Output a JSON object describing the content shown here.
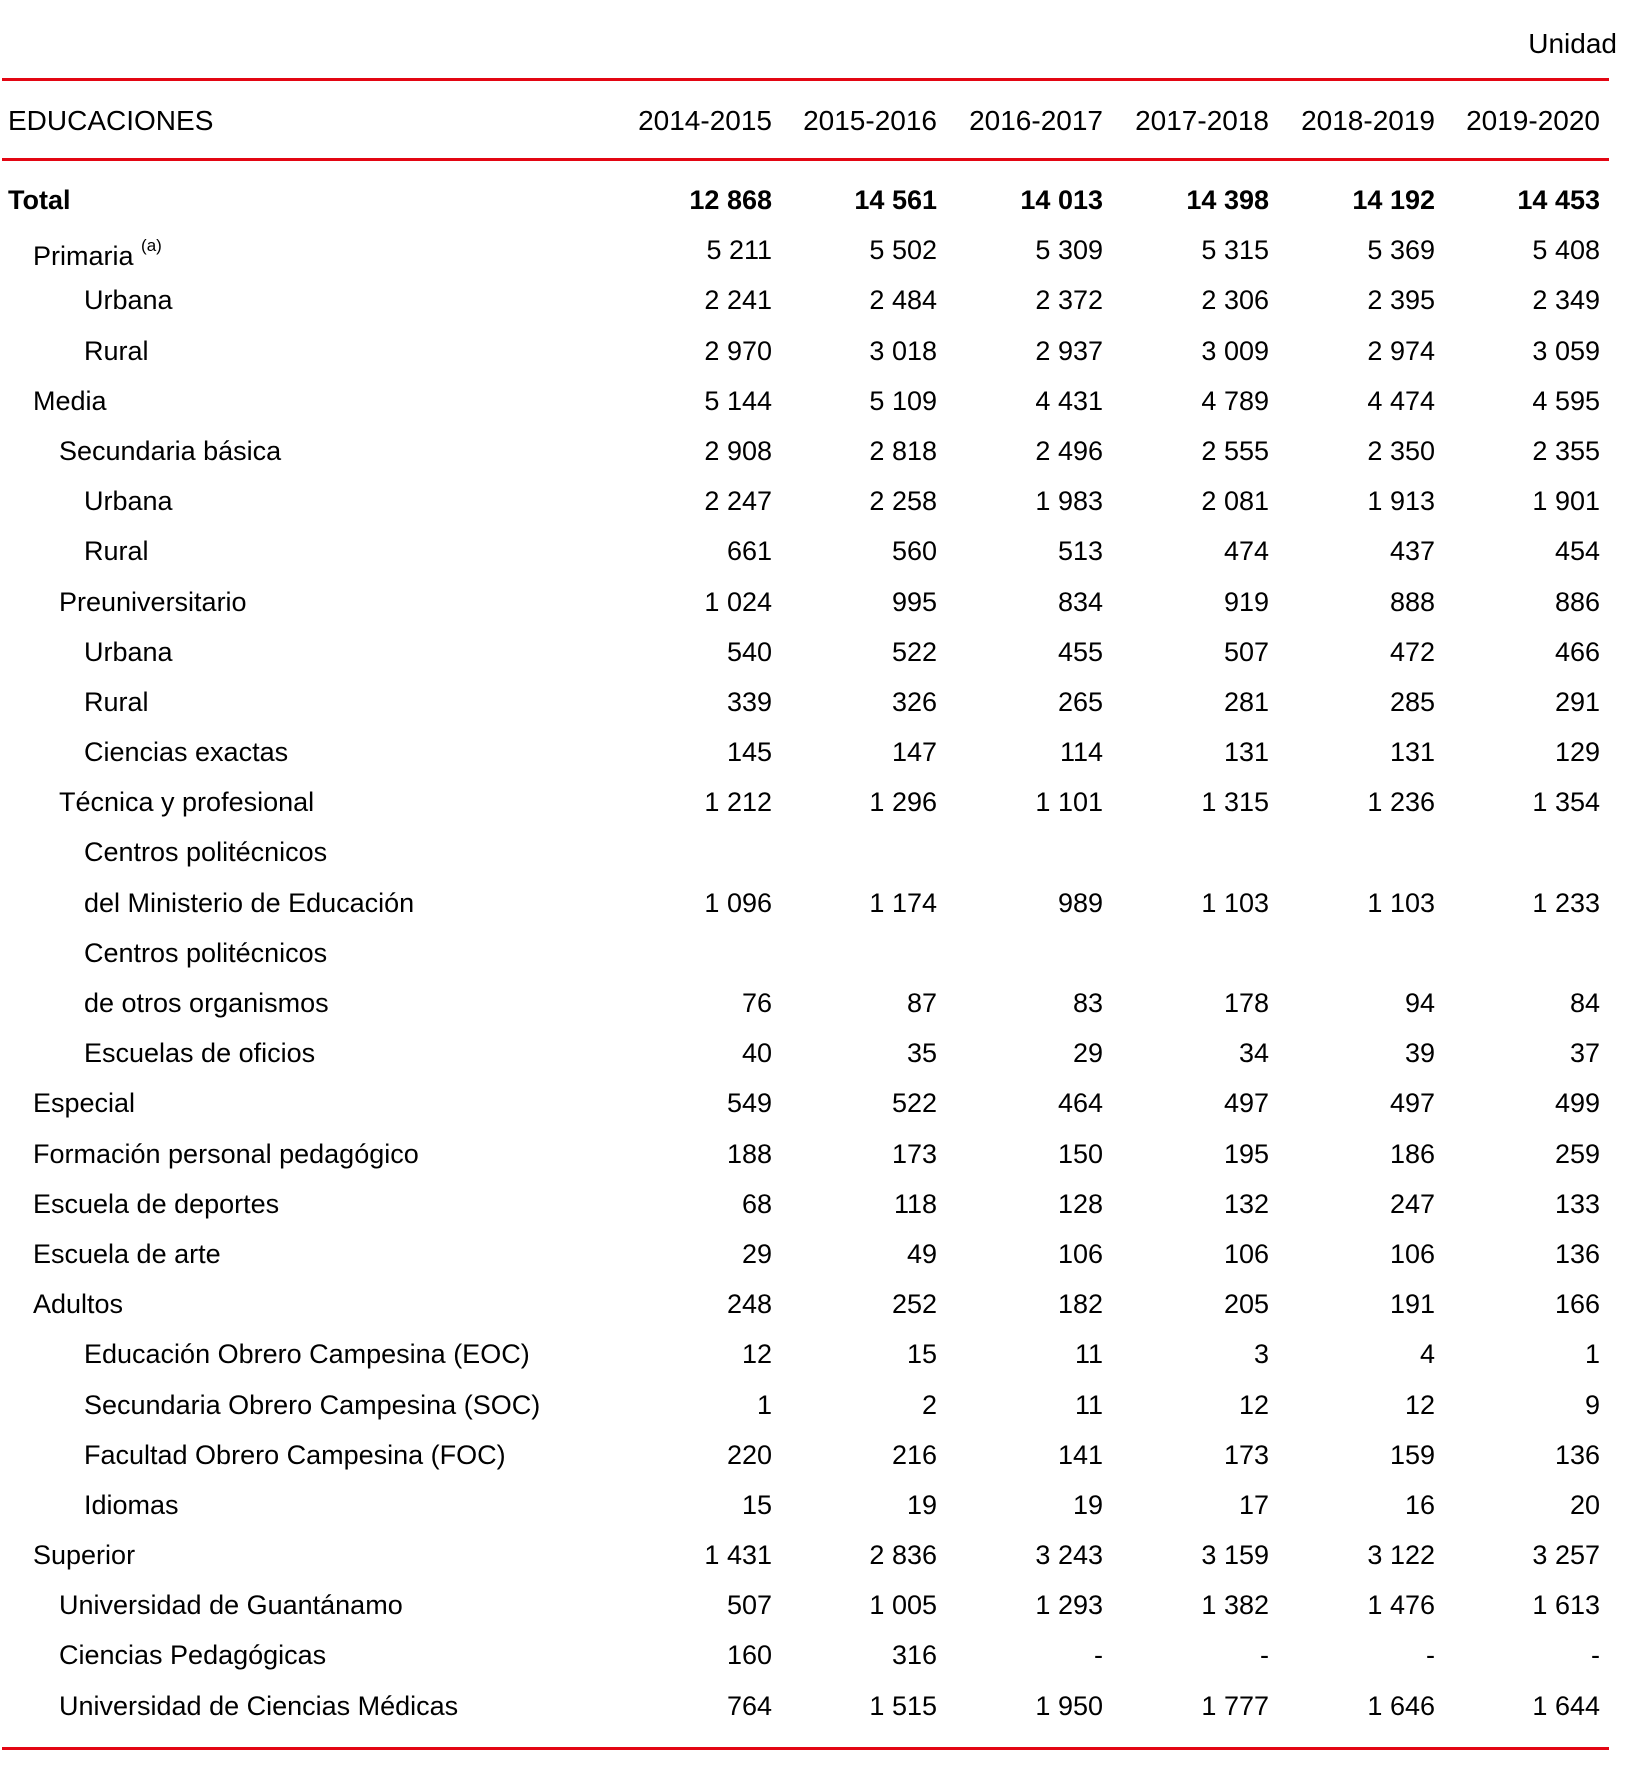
{
  "unit_label": "Unidad",
  "header": {
    "stub": "EDUCACIONES",
    "years": [
      "2014-2015",
      "2015-2016",
      "2016-2017",
      "2017-2018",
      "2018-2019",
      "2019-2020"
    ]
  },
  "rows": [
    {
      "label": "Total",
      "level": 0,
      "bold": true,
      "values": [
        "12 868",
        "14 561",
        "14 013",
        "14 398",
        "14 192",
        "14 453"
      ]
    },
    {
      "label": "Primaria",
      "note": "(a)",
      "level": 1,
      "values": [
        "5 211",
        "5 502",
        "5 309",
        "5 315",
        "5 369",
        "5 408"
      ]
    },
    {
      "label": "Urbana",
      "level": 3,
      "values": [
        "2 241",
        "2 484",
        "2 372",
        "2 306",
        "2 395",
        "2 349"
      ]
    },
    {
      "label": "Rural",
      "level": 3,
      "values": [
        "2 970",
        "3 018",
        "2 937",
        "3 009",
        "2 974",
        "3 059"
      ]
    },
    {
      "label": "Media",
      "level": 1,
      "values": [
        "5 144",
        "5 109",
        "4 431",
        "4 789",
        "4 474",
        "4 595"
      ]
    },
    {
      "label": "Secundaria básica",
      "level": 2,
      "values": [
        "2 908",
        "2 818",
        "2 496",
        "2 555",
        "2 350",
        "2 355"
      ]
    },
    {
      "label": "Urbana",
      "level": 3,
      "values": [
        "2 247",
        "2 258",
        "1 983",
        "2 081",
        "1 913",
        "1 901"
      ]
    },
    {
      "label": "Rural",
      "level": 3,
      "values": [
        "661",
        "560",
        "513",
        "474",
        "437",
        "454"
      ]
    },
    {
      "label": "Preuniversitario",
      "level": 2,
      "values": [
        "1 024",
        "995",
        "834",
        "919",
        "888",
        "886"
      ]
    },
    {
      "label": "Urbana",
      "level": 3,
      "values": [
        "540",
        "522",
        "455",
        "507",
        "472",
        "466"
      ]
    },
    {
      "label": "Rural",
      "level": 3,
      "values": [
        "339",
        "326",
        "265",
        "281",
        "285",
        "291"
      ]
    },
    {
      "label": "Ciencias exactas",
      "level": 3,
      "values": [
        "145",
        "147",
        "114",
        "131",
        "131",
        "129"
      ]
    },
    {
      "label": "Técnica y profesional",
      "level": 2,
      "values": [
        "1 212",
        "1 296",
        "1 101",
        "1 315",
        "1 236",
        "1 354"
      ]
    },
    {
      "label": "Centros politécnicos",
      "level": 3,
      "values": [
        "",
        "",
        "",
        "",
        "",
        ""
      ]
    },
    {
      "label": "del Ministerio de Educación",
      "level": 3,
      "values": [
        "1 096",
        "1 174",
        "989",
        "1 103",
        "1 103",
        "1 233"
      ]
    },
    {
      "label": "Centros politécnicos",
      "level": 3,
      "values": [
        "",
        "",
        "",
        "",
        "",
        ""
      ]
    },
    {
      "label": "de otros organismos",
      "level": 3,
      "values": [
        "76",
        "87",
        "83",
        "178",
        "94",
        "84"
      ]
    },
    {
      "label": "Escuelas de oficios",
      "level": 3,
      "values": [
        "40",
        "35",
        "29",
        "34",
        "39",
        "37"
      ]
    },
    {
      "label": "Especial",
      "level": 1,
      "values": [
        "549",
        "522",
        "464",
        "497",
        "497",
        "499"
      ]
    },
    {
      "label": "Formación personal pedagógico",
      "level": 1,
      "values": [
        "188",
        "173",
        "150",
        "195",
        "186",
        "259"
      ]
    },
    {
      "label": "Escuela de deportes",
      "level": 1,
      "values": [
        "68",
        "118",
        "128",
        "132",
        "247",
        "133"
      ]
    },
    {
      "label": "Escuela de arte",
      "level": 1,
      "values": [
        "29",
        "49",
        "106",
        "106",
        "106",
        "136"
      ]
    },
    {
      "label": "Adultos",
      "level": 1,
      "values": [
        "248",
        "252",
        "182",
        "205",
        "191",
        "166"
      ]
    },
    {
      "label": "Educación Obrero Campesina (EOC)",
      "level": 3,
      "values": [
        "12",
        "15",
        "11",
        "3",
        "4",
        "1"
      ]
    },
    {
      "label": "Secundaria Obrero Campesina (SOC)",
      "level": 3,
      "values": [
        "1",
        "2",
        "11",
        "12",
        "12",
        "9"
      ]
    },
    {
      "label": "Facultad Obrero Campesina (FOC)",
      "level": 3,
      "values": [
        "220",
        "216",
        "141",
        "173",
        "159",
        "136"
      ]
    },
    {
      "label": "Idiomas",
      "level": 3,
      "values": [
        "15",
        "19",
        "19",
        "17",
        "16",
        "20"
      ]
    },
    {
      "label": "Superior",
      "level": 1,
      "values": [
        "1 431",
        "2 836",
        "3 243",
        "3 159",
        "3 122",
        "3 257"
      ]
    },
    {
      "label": "Universidad de Guantánamo",
      "level": 2,
      "values": [
        "507",
        "1 005",
        "1 293",
        "1 382",
        "1 476",
        "1 613"
      ]
    },
    {
      "label": "Ciencias Pedagógicas",
      "level": 2,
      "values": [
        "160",
        "316",
        "-",
        "-",
        "-",
        "-"
      ]
    },
    {
      "label": "Universidad de Ciencias Médicas",
      "level": 2,
      "values": [
        "764",
        "1 515",
        "1 950",
        "1 777",
        "1 646",
        "1 644"
      ]
    }
  ]
}
